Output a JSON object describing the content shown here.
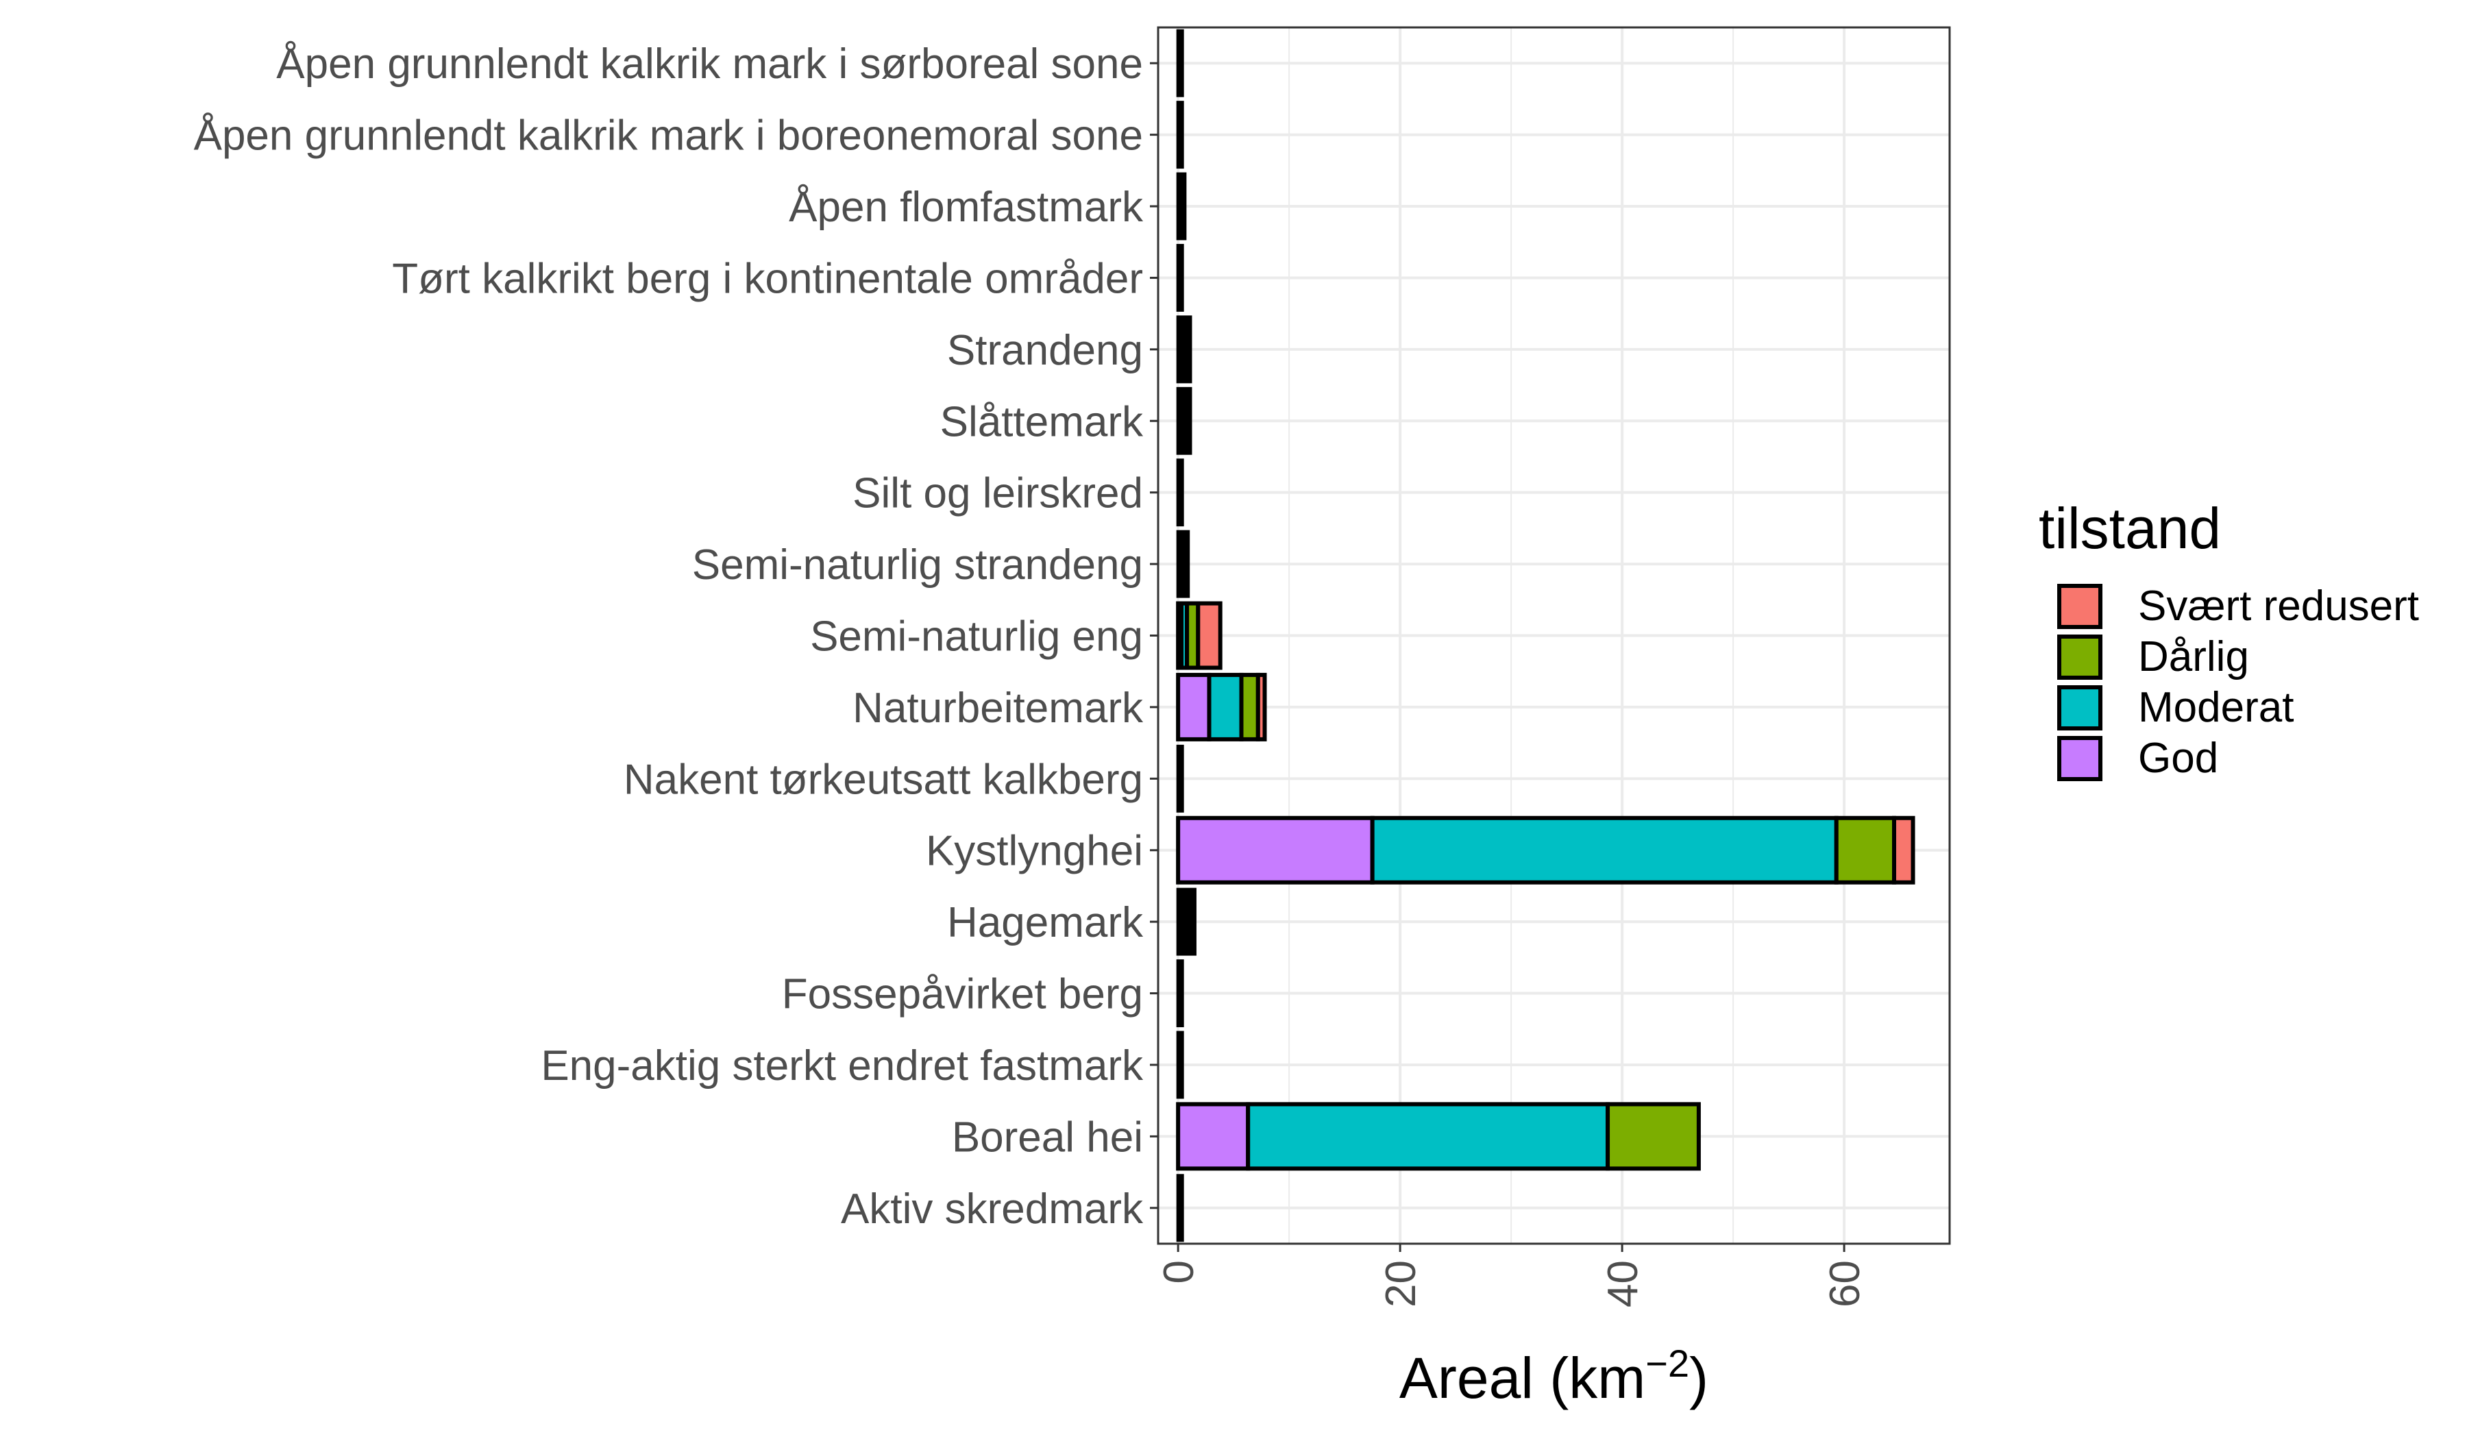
{
  "chart_data": {
    "type": "bar",
    "orientation": "horizontal",
    "stacked": true,
    "categories": [
      "Åpen grunnlendt kalkrik mark i sørboreal sone",
      "Åpen grunnlendt kalkrik mark i boreonemoral sone",
      "Åpen flomfastmark",
      "Tørt kalkrikt berg i kontinentale områder",
      "Strandeng",
      "Slåttemark",
      "Silt og leirskred",
      "Semi-naturlig strandeng",
      "Semi-naturlig eng",
      "Naturbeitemark",
      "Nakent tørkeutsatt kalkberg",
      "Kystlynghei",
      "Hagemark",
      "Fossepåvirket berg",
      "Eng-aktig sterkt endret fastmark",
      "Boreal hei",
      "Aktiv skredmark"
    ],
    "series": [
      {
        "name": "God",
        "color": "#C77CFF",
        "values": [
          0.1,
          0.05,
          0.2,
          0.05,
          0.4,
          0.3,
          0.05,
          0.2,
          0.3,
          2.8,
          0.05,
          17.5,
          0.4,
          0.05,
          0.05,
          6.3,
          0.05
        ]
      },
      {
        "name": "Moderat",
        "color": "#00BFC4",
        "values": [
          0.1,
          0.05,
          0.2,
          0.05,
          0.3,
          0.3,
          0.05,
          0.3,
          0.5,
          2.9,
          0.05,
          41.8,
          0.5,
          0.05,
          0.05,
          32.4,
          0.05
        ]
      },
      {
        "name": "Dårlig",
        "color": "#7CAE00",
        "values": [
          0.1,
          0.05,
          0.1,
          0.05,
          0.2,
          0.3,
          0.05,
          0.2,
          1.0,
          1.5,
          0.05,
          5.2,
          0.3,
          0.05,
          0.05,
          8.2,
          0.05
        ]
      },
      {
        "name": "Svært redusert",
        "color": "#F8766D",
        "values": [
          0.05,
          0.05,
          0.1,
          0.0,
          0.2,
          0.2,
          0.0,
          0.2,
          2.0,
          0.6,
          0.0,
          1.7,
          0.3,
          0.0,
          0.0,
          0.0,
          0.05
        ]
      }
    ],
    "xlabel_main": "Areal (km",
    "xlabel_sup": "−2",
    "xlabel_close": ")",
    "ylabel": "",
    "xlim": [
      -1.8,
      69.5
    ],
    "xticks": [
      0,
      20,
      40,
      60
    ],
    "xtick_labels": [
      "0",
      "20",
      "40",
      "60"
    ],
    "grid": true,
    "legend": {
      "title": "tilstand",
      "position": "right",
      "entries": [
        {
          "label": "Svært redusert",
          "color": "#F8766D"
        },
        {
          "label": "Dårlig",
          "color": "#7CAE00"
        },
        {
          "label": "Moderat",
          "color": "#00BFC4"
        },
        {
          "label": "God",
          "color": "#C77CFF"
        }
      ]
    }
  }
}
